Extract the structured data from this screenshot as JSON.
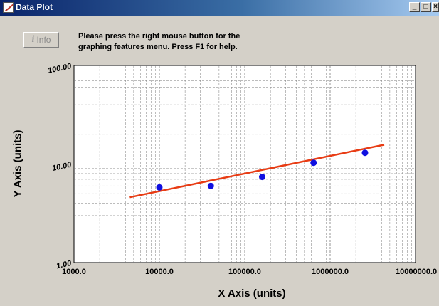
{
  "window": {
    "title": "Data Plot",
    "minimize_label": "_",
    "maximize_label": "□",
    "close_label": "×"
  },
  "toolbar": {
    "info_label": "Info",
    "help_line1": "Please press the right mouse button for the",
    "help_line2": "graphing features menu.  Press F1 for help."
  },
  "chart_data": {
    "type": "scatter",
    "x_scale": "log",
    "y_scale": "log",
    "xlabel": "X Axis (units)",
    "ylabel": "Y Axis (units)",
    "xlim": [
      1000,
      10000000
    ],
    "ylim": [
      1,
      100
    ],
    "x_tick_labels": [
      "1000.0",
      "10000.0",
      "100000.0",
      "1000000.0",
      "10000000.0"
    ],
    "y_tick_labels": [
      "100.00",
      "10.00",
      "1.00"
    ],
    "grid": true,
    "points": [
      {
        "x": 10000,
        "y": 5.8
      },
      {
        "x": 40000,
        "y": 6.0
      },
      {
        "x": 160000,
        "y": 7.4
      },
      {
        "x": 640000,
        "y": 10.3
      },
      {
        "x": 2560000,
        "y": 13.0
      }
    ],
    "fit_line": {
      "x_start": 4500,
      "y_start": 4.6,
      "x_end": 4300000,
      "y_end": 15.7
    },
    "colors": {
      "points": "#1010e0",
      "fit_line": "#e83c14",
      "grid": "#7a7a7a"
    }
  }
}
